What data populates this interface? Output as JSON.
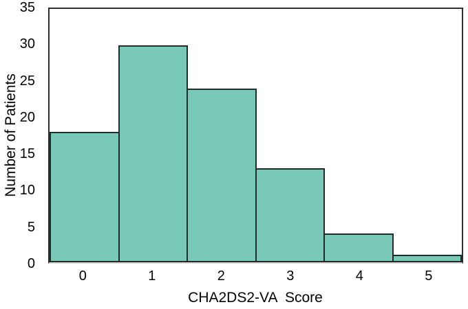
{
  "figure": {
    "background": "#ffffff"
  },
  "chart_data": {
    "type": "bar",
    "subtype": "histogram",
    "title": "",
    "categories": [
      "0",
      "1",
      "2",
      "3",
      "4",
      "5"
    ],
    "values": [
      18,
      30,
      24,
      13,
      4,
      1
    ],
    "xlabel": "CHA2DS2-VA  Score",
    "ylabel": "Number of Patients",
    "ylim": [
      0,
      35
    ],
    "yticks": [
      0,
      5,
      10,
      15,
      20,
      25,
      30,
      35
    ],
    "grid": false,
    "legend": false,
    "bars_adjacent": true,
    "colors": {
      "bar_fill": "#78c9b7",
      "bar_border": "#232b29",
      "axis": "#2e2e2e",
      "baseline": "#d9d9d9",
      "text": "#000000"
    }
  }
}
